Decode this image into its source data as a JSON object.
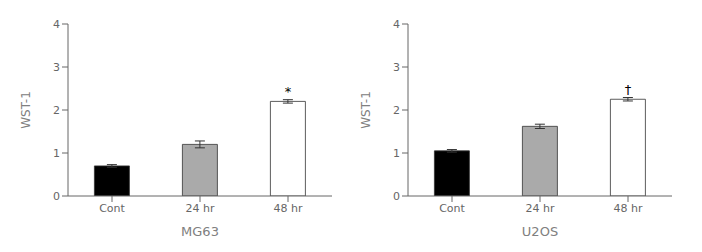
{
  "chart_data": [
    {
      "type": "bar",
      "categories": [
        "Cont",
        "24 hr",
        "48 hr"
      ],
      "values": [
        0.7,
        1.2,
        2.2
      ],
      "errors": [
        0.03,
        0.08,
        0.04
      ],
      "colors": [
        "#000000",
        "#aaaaaa",
        "#ffffff"
      ],
      "xlabel": "MG63",
      "ylabel": "WST-1",
      "ylim": [
        0,
        4
      ],
      "yticks": [
        0,
        1,
        2,
        3,
        4
      ],
      "grid": false,
      "annotations": [
        {
          "category": "48 hr",
          "text": "*"
        }
      ]
    },
    {
      "type": "bar",
      "categories": [
        "Cont",
        "24 hr",
        "48 hr"
      ],
      "values": [
        1.05,
        1.62,
        2.25
      ],
      "errors": [
        0.03,
        0.05,
        0.04
      ],
      "colors": [
        "#000000",
        "#aaaaaa",
        "#ffffff"
      ],
      "xlabel": "U2OS",
      "ylabel": "WST-1",
      "ylim": [
        0,
        4
      ],
      "yticks": [
        0,
        1,
        2,
        3,
        4
      ],
      "grid": false,
      "annotations": [
        {
          "category": "48 hr",
          "text": "†"
        }
      ]
    }
  ]
}
